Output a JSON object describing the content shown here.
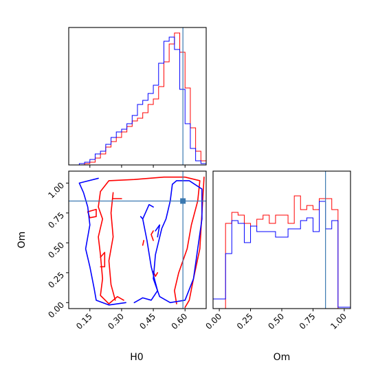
{
  "chart_data": [
    {
      "type": "histogram",
      "panel": "top-left",
      "xlabel": "",
      "xlim": [
        0.05,
        0.7
      ],
      "xticks": [
        0.15,
        0.3,
        0.45,
        0.6
      ],
      "truth_line": {
        "x": 0.59,
        "color": "#3a78b0"
      },
      "series": [
        {
          "name": "",
          "color": "#ff0000",
          "bin_edges": [
            0.05,
            0.075,
            0.1,
            0.125,
            0.15,
            0.175,
            0.2,
            0.225,
            0.25,
            0.275,
            0.3,
            0.325,
            0.35,
            0.375,
            0.4,
            0.425,
            0.45,
            0.475,
            0.5,
            0.525,
            0.55,
            0.575,
            0.6,
            0.625,
            0.65,
            0.675,
            0.7
          ],
          "values": [
            0,
            0,
            0,
            0.01,
            0.02,
            0.05,
            0.08,
            0.13,
            0.17,
            0.2,
            0.24,
            0.28,
            0.32,
            0.34,
            0.38,
            0.44,
            0.48,
            0.57,
            0.75,
            0.88,
            0.96,
            0.82,
            0.56,
            0.27,
            0.1,
            0.03
          ]
        },
        {
          "name": "",
          "color": "#0000ff",
          "bin_edges": [
            0.05,
            0.075,
            0.1,
            0.125,
            0.15,
            0.175,
            0.2,
            0.225,
            0.25,
            0.275,
            0.3,
            0.325,
            0.35,
            0.375,
            0.4,
            0.425,
            0.45,
            0.475,
            0.5,
            0.525,
            0.55,
            0.575,
            0.6,
            0.625,
            0.65,
            0.675,
            0.7
          ],
          "values": [
            0,
            0,
            0.01,
            0.02,
            0.04,
            0.08,
            0.1,
            0.15,
            0.2,
            0.24,
            0.26,
            0.3,
            0.36,
            0.44,
            0.47,
            0.52,
            0.58,
            0.74,
            0.9,
            0.93,
            0.84,
            0.55,
            0.3,
            0.12,
            0.03,
            0.01
          ]
        }
      ]
    },
    {
      "type": "contour",
      "panel": "bottom-left",
      "xlabel": "H0",
      "ylabel": "Om",
      "xlim": [
        0.05,
        0.7
      ],
      "ylim": [
        -0.05,
        1.1
      ],
      "xticks": [
        0.15,
        0.3,
        0.45,
        0.6
      ],
      "yticks": [
        0.0,
        0.25,
        0.5,
        0.75,
        1.0
      ],
      "xtick_labels": [
        "0.15",
        "0.30",
        "0.45",
        "0.60"
      ],
      "ytick_labels": [
        "0.00",
        "0.25",
        "0.50",
        "0.75",
        "1.00"
      ],
      "truth_point": {
        "x": 0.59,
        "y": 0.85,
        "color": "#3a78b0"
      },
      "series": [
        {
          "name": "",
          "color": "#ff0000",
          "contours": [
            [
              [
                0.56,
                -0.01
              ],
              [
                0.55,
                0.1
              ],
              [
                0.57,
                0.25
              ],
              [
                0.61,
                0.45
              ],
              [
                0.63,
                0.65
              ],
              [
                0.66,
                0.85
              ],
              [
                0.67,
                1.02
              ],
              [
                0.6,
                1.05
              ],
              [
                0.5,
                1.05
              ],
              [
                0.36,
                1.03
              ],
              [
                0.24,
                1.02
              ],
              [
                0.2,
                0.93
              ],
              [
                0.19,
                0.8
              ],
              [
                0.21,
                0.7
              ],
              [
                0.19,
                0.55
              ],
              [
                0.2,
                0.4
              ],
              [
                0.21,
                0.2
              ],
              [
                0.2,
                0.06
              ],
              [
                0.24,
                -0.01
              ],
              [
                0.28,
                0.05
              ],
              [
                0.31,
                0.02
              ]
            ],
            [
              [
                0.69,
                1.05
              ],
              [
                0.68,
                0.75
              ],
              [
                0.67,
                0.45
              ],
              [
                0.64,
                0.2
              ],
              [
                0.62,
                0.02
              ],
              [
                0.6,
                -0.04
              ]
            ],
            [
              [
                0.26,
                0.92
              ],
              [
                0.25,
                0.75
              ],
              [
                0.26,
                0.55
              ],
              [
                0.24,
                0.35
              ],
              [
                0.25,
                0.15
              ],
              [
                0.27,
                0.02
              ]
            ],
            [
              [
                0.4,
                0.48
              ],
              [
                0.405,
                0.52
              ]
            ],
            [
              [
                0.45,
                0.52
              ],
              [
                0.44,
                0.57
              ],
              [
                0.45,
                0.6
              ]
            ],
            [
              [
                0.14,
                0.76
              ],
              [
                0.18,
                0.78
              ],
              [
                0.18,
                0.72
              ],
              [
                0.15,
                0.71
              ],
              [
                0.14,
                0.76
              ]
            ],
            [
              [
                0.2,
                0.38
              ],
              [
                0.22,
                0.42
              ],
              [
                0.22,
                0.3
              ],
              [
                0.2,
                0.3
              ]
            ],
            [
              [
                0.45,
                0.26
              ],
              [
                0.46,
                0.22
              ],
              [
                0.47,
                0.25
              ]
            ],
            [
              [
                0.26,
                0.87
              ],
              [
                0.3,
                0.87
              ]
            ]
          ]
        },
        {
          "name": "",
          "color": "#0000ff",
          "contours": [
            [
              [
                0.54,
                0.99
              ],
              [
                0.53,
                0.85
              ],
              [
                0.51,
                0.7
              ],
              [
                0.49,
                0.62
              ],
              [
                0.46,
                0.4
              ],
              [
                0.45,
                0.2
              ],
              [
                0.48,
                0.05
              ],
              [
                0.53,
                0.0
              ],
              [
                0.6,
                0.02
              ],
              [
                0.64,
                0.2
              ],
              [
                0.66,
                0.45
              ],
              [
                0.68,
                0.7
              ],
              [
                0.68,
                0.95
              ],
              [
                0.62,
                1.02
              ],
              [
                0.56,
                1.02
              ],
              [
                0.54,
                0.99
              ]
            ],
            [
              [
                0.19,
                1.04
              ],
              [
                0.1,
                1.0
              ],
              [
                0.12,
                0.92
              ],
              [
                0.14,
                0.8
              ],
              [
                0.15,
                0.65
              ],
              [
                0.13,
                0.45
              ],
              [
                0.15,
                0.3
              ],
              [
                0.17,
                0.12
              ],
              [
                0.18,
                0.02
              ],
              [
                0.24,
                -0.02
              ],
              [
                0.32,
                0.0
              ]
            ],
            [
              [
                0.36,
                0.0
              ],
              [
                0.4,
                0.04
              ],
              [
                0.44,
                0.02
              ],
              [
                0.47,
                0.1
              ],
              [
                0.44,
                0.3
              ],
              [
                0.42,
                0.52
              ],
              [
                0.4,
                0.7
              ],
              [
                0.42,
                0.78
              ],
              [
                0.43,
                0.82
              ],
              [
                0.45,
                0.8
              ]
            ],
            [
              [
                0.39,
                0.72
              ],
              [
                0.4,
                0.7
              ]
            ],
            [
              [
                0.47,
                0.55
              ],
              [
                0.48,
                0.65
              ],
              [
                0.46,
                0.6
              ]
            ]
          ]
        }
      ]
    },
    {
      "type": "histogram",
      "panel": "bottom-right",
      "xlabel": "Om",
      "xlim": [
        -0.05,
        1.05
      ],
      "xticks": [
        0.0,
        0.25,
        0.5,
        0.75,
        1.0
      ],
      "xtick_labels": [
        "0.00",
        "0.25",
        "0.50",
        "0.75",
        "1.00"
      ],
      "truth_line": {
        "x": 0.85,
        "color": "#3a78b0"
      },
      "series": [
        {
          "name": "",
          "color": "#ff0000",
          "bin_edges": [
            -0.05,
            0.0,
            0.05,
            0.1,
            0.15,
            0.2,
            0.25,
            0.3,
            0.35,
            0.4,
            0.45,
            0.5,
            0.55,
            0.6,
            0.65,
            0.7,
            0.75,
            0.8,
            0.85,
            0.9,
            0.95,
            1.0,
            1.05
          ],
          "values": [
            0,
            0,
            0.62,
            0.7,
            0.68,
            0.62,
            0.6,
            0.65,
            0.68,
            0.62,
            0.68,
            0.68,
            0.62,
            0.82,
            0.72,
            0.75,
            0.72,
            0.8,
            0.8,
            0.72,
            0,
            0
          ]
        },
        {
          "name": "",
          "color": "#0000ff",
          "bin_edges": [
            -0.05,
            0.0,
            0.05,
            0.1,
            0.15,
            0.2,
            0.25,
            0.3,
            0.35,
            0.4,
            0.45,
            0.5,
            0.55,
            0.6,
            0.65,
            0.7,
            0.75,
            0.8,
            0.85,
            0.9,
            0.95,
            1.0,
            1.05
          ],
          "values": [
            0.07,
            0.07,
            0.4,
            0.64,
            0.62,
            0.48,
            0.6,
            0.56,
            0.56,
            0.56,
            0.52,
            0.52,
            0.58,
            0.58,
            0.64,
            0.66,
            0.56,
            0.78,
            0.58,
            0.64,
            0.01,
            0.01
          ]
        }
      ]
    }
  ]
}
